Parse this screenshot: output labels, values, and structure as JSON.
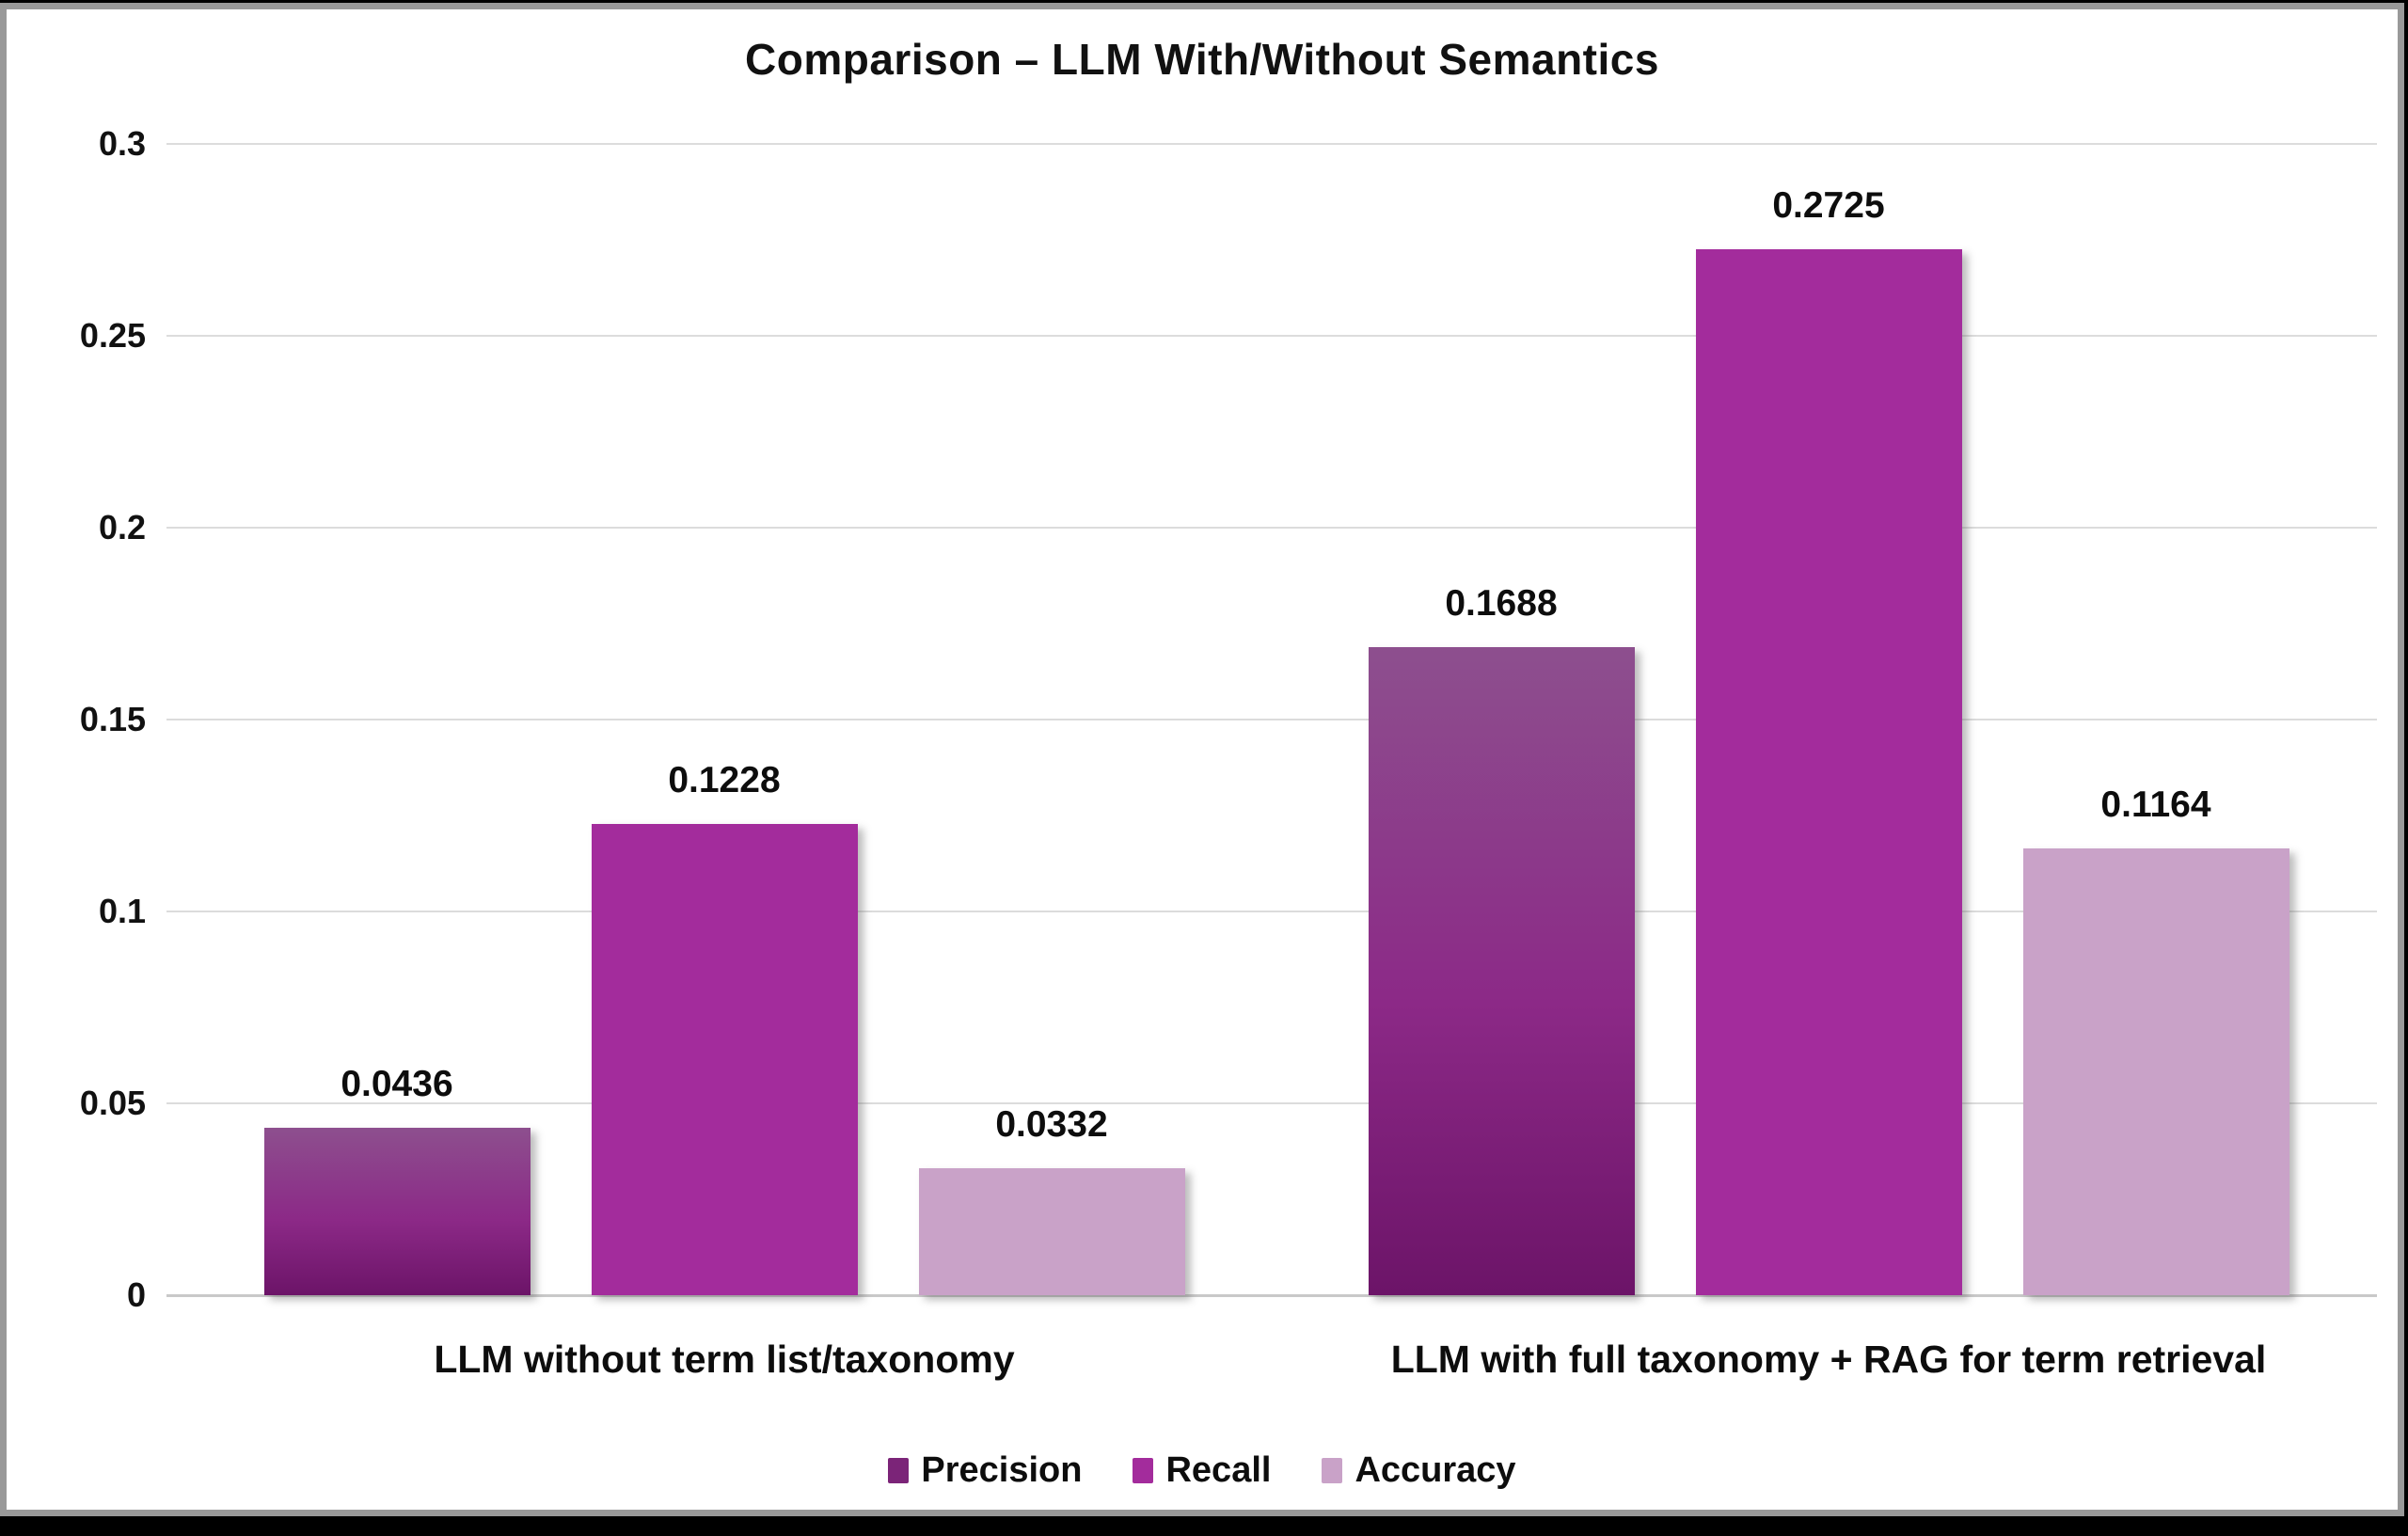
{
  "colors": {
    "background": "#ffffff",
    "frame_border": "#999999",
    "outer_edge": "#000000",
    "text": "#111111",
    "gridline": "#dcdcdc",
    "axis_line": "#c9c9c9",
    "precision_legend": "#7B2478",
    "precision_gradient_top": "#8D4F8E",
    "precision_gradient_mid": "#8C2987",
    "precision_gradient_bottom": "#6C1468",
    "recall": "#A32C9C",
    "accuracy": "#C9A2C8"
  },
  "chart_data": {
    "type": "bar",
    "title": "Comparison – LLM With/Without Semantics",
    "categories": [
      "LLM without term list/taxonomy",
      "LLM with full taxonomy + RAG for term retrieval"
    ],
    "series": [
      {
        "name": "Precision",
        "values": [
          0.0436,
          0.1688
        ],
        "labels": [
          "0.0436",
          "0.1688"
        ],
        "color": "#7B2478",
        "gradient": [
          "#8D4F8E",
          "#8C2987",
          "#6C1468"
        ]
      },
      {
        "name": "Recall",
        "values": [
          0.1228,
          0.2725
        ],
        "labels": [
          "0.1228",
          "0.2725"
        ],
        "color": "#A32C9C"
      },
      {
        "name": "Accuracy",
        "values": [
          0.0332,
          0.1164
        ],
        "labels": [
          "0.0332",
          "0.1164"
        ],
        "color": "#C9A2C8"
      }
    ],
    "y_axis": {
      "min": 0,
      "max": 0.3,
      "tick_labels": [
        "0.3",
        "0.25",
        "0.2",
        "0.15",
        "0.1",
        "0.05",
        "0"
      ],
      "tick_values": [
        0.3,
        0.25,
        0.2,
        0.15,
        0.1,
        0.05,
        0
      ]
    },
    "grid": true,
    "value_labels_shown": true,
    "legend": {
      "position": "bottom",
      "entries": [
        "Precision",
        "Recall",
        "Accuracy"
      ]
    }
  }
}
